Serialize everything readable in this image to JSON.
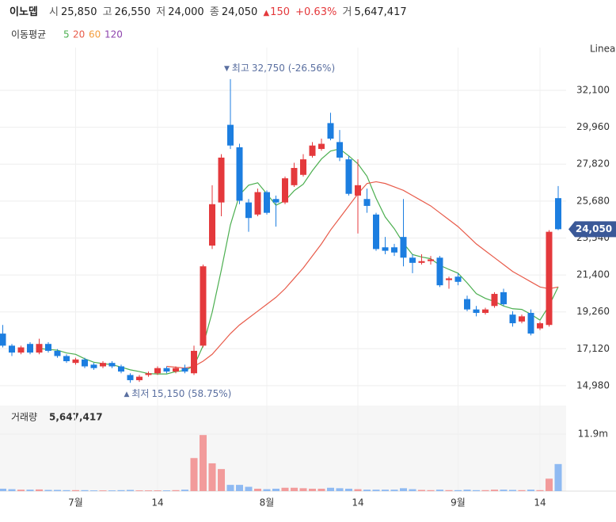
{
  "header": {
    "name": "이노뎁",
    "open_label": "시",
    "open": "25,850",
    "high_label": "고",
    "high": "26,550",
    "low_label": "저",
    "low": "24,000",
    "close_label": "종",
    "close": "24,050",
    "change": "150",
    "change_pct": "+0.63%",
    "volume_label": "거",
    "volume": "5,647,417"
  },
  "chart_data": {
    "type": "candlestick",
    "scale": "Linear",
    "categories": [
      null,
      null,
      null,
      null,
      null,
      null,
      null,
      null,
      "7월",
      null,
      null,
      null,
      null,
      null,
      null,
      null,
      null,
      "14",
      null,
      null,
      null,
      null,
      null,
      null,
      null,
      null,
      null,
      null,
      null,
      "8월",
      null,
      null,
      null,
      null,
      null,
      null,
      null,
      null,
      null,
      "14",
      null,
      null,
      null,
      null,
      null,
      null,
      null,
      null,
      null,
      null,
      "9월",
      null,
      null,
      null,
      null,
      null,
      null,
      null,
      null,
      "14",
      null,
      null
    ],
    "open": [
      18000,
      17300,
      16900,
      17400,
      16900,
      17400,
      17000,
      16700,
      16300,
      16500,
      16200,
      16100,
      16300,
      16100,
      15600,
      15300,
      15600,
      15700,
      16000,
      15800,
      16000,
      15700,
      17300,
      23100,
      25600,
      30100,
      28800,
      25600,
      24900,
      26200,
      25800,
      25600,
      26600,
      27200,
      28300,
      28700,
      30200,
      29100,
      28100,
      26000,
      25800,
      24900,
      23000,
      23000,
      23600,
      22400,
      22100,
      22200,
      22400,
      21100,
      21300,
      20000,
      19400,
      19200,
      19600,
      20400,
      19100,
      18700,
      19200,
      18300,
      18500,
      25850
    ],
    "high": [
      18500,
      17400,
      17300,
      17500,
      17700,
      17500,
      17100,
      16800,
      16600,
      16600,
      16300,
      16400,
      16400,
      16200,
      15700,
      15600,
      15800,
      16100,
      16100,
      16100,
      16200,
      17300,
      22000,
      26600,
      28400,
      32750,
      29000,
      25800,
      26400,
      26300,
      26000,
      27100,
      27900,
      28400,
      29100,
      29300,
      30800,
      29800,
      28300,
      28100,
      26400,
      25000,
      23600,
      23200,
      25800,
      22600,
      22600,
      22500,
      22500,
      21300,
      21500,
      20200,
      19600,
      19500,
      20400,
      20600,
      19300,
      19100,
      19400,
      18700,
      24000,
      26550
    ],
    "low": [
      17200,
      16700,
      16800,
      16800,
      16800,
      16900,
      16600,
      16300,
      16200,
      16000,
      15900,
      16000,
      16000,
      15700,
      15150,
      15200,
      15500,
      15600,
      15700,
      15700,
      15700,
      15600,
      17200,
      22900,
      24800,
      28700,
      25500,
      23900,
      24800,
      24900,
      24200,
      25500,
      26500,
      27100,
      28200,
      28600,
      29200,
      28000,
      26000,
      23800,
      25000,
      22800,
      22600,
      22500,
      21900,
      21500,
      22000,
      22000,
      20700,
      20600,
      20800,
      19300,
      19000,
      19100,
      19500,
      19600,
      18400,
      18600,
      17900,
      18200,
      18400,
      24000
    ],
    "close": [
      17300,
      16900,
      17200,
      16900,
      17400,
      17000,
      16700,
      16400,
      16500,
      16100,
      16000,
      16300,
      16100,
      15800,
      15300,
      15500,
      15700,
      16000,
      15800,
      16000,
      15800,
      17000,
      21900,
      25500,
      28200,
      28900,
      25700,
      24700,
      26200,
      25000,
      25600,
      27000,
      27600,
      28100,
      28900,
      29000,
      29300,
      28200,
      26100,
      26600,
      25400,
      22900,
      22800,
      22700,
      22400,
      22100,
      22200,
      22300,
      20800,
      21200,
      21000,
      19400,
      19200,
      19400,
      20300,
      19700,
      18600,
      19000,
      18000,
      18600,
      23900,
      24050
    ],
    "up_color": "#e4393c",
    "down_color": "#1c7ee0",
    "ylim": [
      14150,
      34580
    ],
    "yticks": [
      {
        "value": 14980,
        "label": "14,980"
      },
      {
        "value": 17120,
        "label": "17,120"
      },
      {
        "value": 19260,
        "label": "19,260"
      },
      {
        "value": 21400,
        "label": "21,400"
      },
      {
        "value": 23540,
        "label": "23,540"
      },
      {
        "value": 25680,
        "label": "25,680"
      },
      {
        "value": 27820,
        "label": "27,820"
      },
      {
        "value": 29960,
        "label": "29,960"
      },
      {
        "value": 32100,
        "label": "32,100"
      }
    ],
    "grid": true,
    "last_price_label": "24,050",
    "max_annotation": {
      "label": "최고",
      "text": "32,750 (-26.56%)"
    },
    "min_annotation": {
      "label": "최저",
      "text": "15,150 (58.75%)"
    },
    "moving_average": {
      "title": "이동평균",
      "series": [
        {
          "name": "5",
          "color": "#4caf50",
          "values": [
            null,
            null,
            null,
            null,
            17140,
            17080,
            17040,
            16880,
            16800,
            16540,
            16340,
            16260,
            16200,
            16060,
            15900,
            15800,
            15680,
            15660,
            15660,
            15800,
            15860,
            16120,
            17300,
            19240,
            21680,
            24300,
            26040,
            26600,
            26740,
            26100,
            25440,
            25700,
            26280,
            26660,
            27440,
            28120,
            28580,
            28700,
            28300,
            27840,
            27120,
            25840,
            24760,
            24080,
            23240,
            22580,
            22440,
            22340,
            21960,
            21720,
            21500,
            20940,
            20320,
            20040,
            19860,
            19600,
            19440,
            19400,
            19120,
            18780,
            19620,
            20710
          ]
        },
        {
          "name": "20",
          "color": "#e85b4a",
          "values": [
            null,
            null,
            null,
            null,
            null,
            null,
            null,
            null,
            null,
            null,
            null,
            null,
            null,
            null,
            null,
            null,
            null,
            null,
            16100,
            16050,
            16000,
            16100,
            16400,
            16800,
            17400,
            18000,
            18500,
            18900,
            19300,
            19700,
            20100,
            20600,
            21200,
            21800,
            22500,
            23200,
            24000,
            24700,
            25400,
            26100,
            26700,
            26800,
            26700,
            26500,
            26300,
            26000,
            25700,
            25400,
            25000,
            24600,
            24200,
            23700,
            23200,
            22800,
            22400,
            22000,
            21600,
            21300,
            21000,
            20700,
            20600,
            20700
          ]
        },
        {
          "name": "60",
          "color": "#f39c3c"
        },
        {
          "name": "120",
          "color": "#8e44ad"
        }
      ]
    },
    "volume": {
      "title": "거래량",
      "value_label": "5,647,417",
      "up_color": "#f29b9b",
      "down_color": "#8fbaf2",
      "values": [
        500000,
        400000,
        300000,
        300000,
        350000,
        250000,
        250000,
        200000,
        200000,
        200000,
        150000,
        150000,
        150000,
        200000,
        250000,
        150000,
        150000,
        150000,
        150000,
        200000,
        300000,
        6900000,
        11700000,
        5800000,
        4600000,
        1300000,
        1300000,
        900000,
        500000,
        400000,
        500000,
        700000,
        700000,
        600000,
        500000,
        500000,
        700000,
        600000,
        500000,
        400000,
        300000,
        300000,
        300000,
        300000,
        600000,
        400000,
        250000,
        200000,
        300000,
        200000,
        200000,
        300000,
        200000,
        200000,
        300000,
        300000,
        250000,
        200000,
        300000,
        200000,
        2600000,
        5647417
      ],
      "ylim": [
        0,
        17850000
      ],
      "yticks": [
        {
          "value": 11900000,
          "label": "11.9m"
        }
      ]
    }
  }
}
